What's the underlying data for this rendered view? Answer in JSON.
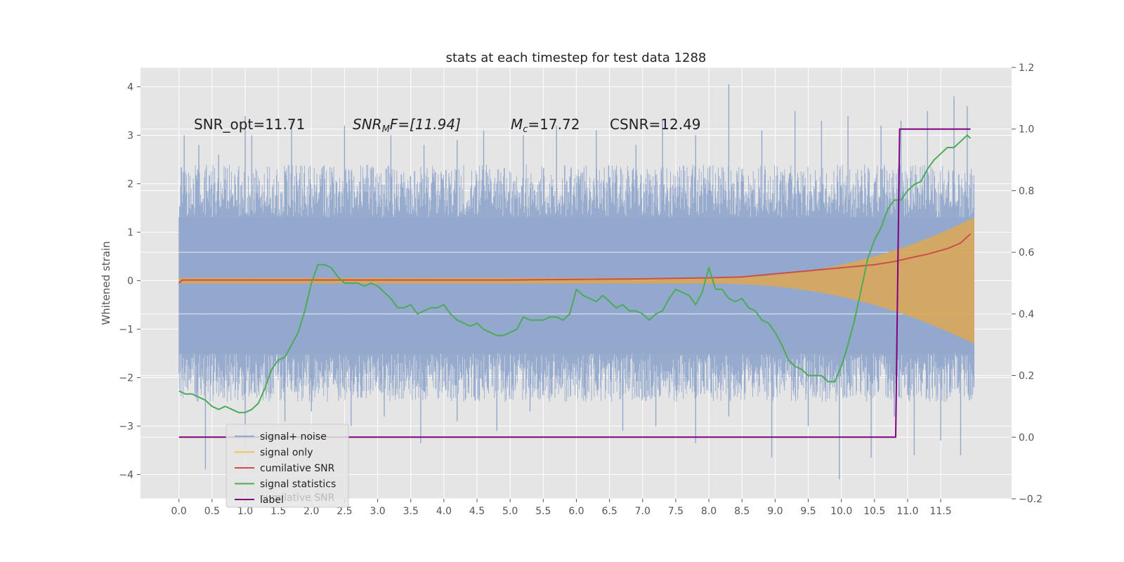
{
  "chart_data": {
    "type": "line",
    "title": "stats at each timestep for test data 1288",
    "ylabel": "Whitened strain",
    "xlim": [
      -0.58,
      12.57
    ],
    "ylim": [
      -4.5,
      4.4
    ],
    "y2lim": [
      -0.2,
      1.2
    ],
    "grid": true,
    "x_ticks": [
      "0.0",
      "0.5",
      "1.0",
      "1.5",
      "2.0",
      "2.5",
      "3.0",
      "3.5",
      "4.0",
      "4.5",
      "5.0",
      "5.5",
      "6.0",
      "6.5",
      "7.0",
      "7.5",
      "8.0",
      "8.5",
      "9.0",
      "9.5",
      "10.0",
      "10.5",
      "11.0",
      "11.5"
    ],
    "y_ticks": [
      "4",
      "3",
      "2",
      "1",
      "0",
      "−1",
      "−2",
      "−3",
      "−4"
    ],
    "y2_ticks": [
      "1.2",
      "1.0",
      "0.8",
      "0.6",
      "0.4",
      "0.2",
      "0.0",
      "−0.2"
    ],
    "annotations": {
      "snr_opt": "SNR_opt=11.71",
      "snr_mf_main": "SNR",
      "snr_mf_sub": "M",
      "snr_mf_rest": "F=[11.94]",
      "mc_main": "M",
      "mc_sub": "c",
      "mc_rest": "=17.72",
      "csnr": "CSNR=12.49"
    },
    "legend": {
      "placement": "lower-left",
      "ghost_text": "cumilative SNR",
      "entries": [
        {
          "name": "signal+ noise",
          "color": "#92a8cc"
        },
        {
          "name": "signal only",
          "color": "#f1c453"
        },
        {
          "name": "cumilative SNR",
          "color": "#cc4f4a"
        },
        {
          "name": "signal statistics",
          "color": "#4caa58"
        },
        {
          "name": "label",
          "color": "#800080"
        }
      ]
    },
    "noise_envelope": {
      "x": [
        0.0,
        12.0
      ],
      "upper": 1.3,
      "lower": -1.5,
      "peaks_upper": [
        [
          0.05,
          1.2
        ],
        [
          0.08,
          3.0
        ],
        [
          0.3,
          2.8
        ],
        [
          0.6,
          2.6
        ],
        [
          1.0,
          3.4
        ],
        [
          1.1,
          3.0
        ],
        [
          1.7,
          3.3
        ],
        [
          2.2,
          2.1
        ],
        [
          2.5,
          3.2
        ],
        [
          3.2,
          3.0
        ],
        [
          3.7,
          2.8
        ],
        [
          4.2,
          2.9
        ],
        [
          4.6,
          3.1
        ],
        [
          5.2,
          3.0
        ],
        [
          5.7,
          3.2
        ],
        [
          6.0,
          0.85
        ],
        [
          6.3,
          3.1
        ],
        [
          6.9,
          2.8
        ],
        [
          7.3,
          3.3
        ],
        [
          7.8,
          3.0
        ],
        [
          8.3,
          4.05
        ],
        [
          8.8,
          3.1
        ],
        [
          9.3,
          3.5
        ],
        [
          9.7,
          3.3
        ],
        [
          10.1,
          3.4
        ],
        [
          10.6,
          3.2
        ],
        [
          10.9,
          3.3
        ],
        [
          11.3,
          3.5
        ],
        [
          11.7,
          3.8
        ],
        [
          11.9,
          3.6
        ],
        [
          12.0,
          2.0
        ]
      ],
      "peaks_lower": [
        [
          0.05,
          -1.8
        ],
        [
          0.4,
          -3.9
        ],
        [
          1.0,
          -3.5
        ],
        [
          1.6,
          -2.9
        ],
        [
          2.0,
          -2.7
        ],
        [
          2.6,
          -3.0
        ],
        [
          3.1,
          -2.8
        ],
        [
          3.65,
          -3.35
        ],
        [
          4.2,
          -2.9
        ],
        [
          4.8,
          -3.1
        ],
        [
          5.3,
          -2.7
        ],
        [
          6.0,
          -1.1
        ],
        [
          6.7,
          -3.1
        ],
        [
          7.2,
          -3.0
        ],
        [
          7.8,
          -3.35
        ],
        [
          8.3,
          -2.8
        ],
        [
          8.95,
          -3.65
        ],
        [
          9.5,
          -3.0
        ],
        [
          9.97,
          -4.1
        ],
        [
          10.45,
          -3.65
        ],
        [
          10.8,
          -2.8
        ],
        [
          11.1,
          -3.6
        ],
        [
          11.5,
          -3.3
        ],
        [
          11.8,
          -3.6
        ],
        [
          12.0,
          -2.2
        ]
      ]
    },
    "signal_only": {
      "x_start": 8.0,
      "x_end": 12.0,
      "amp_start": 0.06,
      "amp_end": 1.3,
      "color": "#daa659"
    },
    "series": [
      {
        "name": "cumilative SNR",
        "axis": "right",
        "color": "#cc4f4a",
        "x": [
          0.0,
          0.05,
          1.0,
          2.0,
          3.0,
          4.0,
          5.0,
          6.0,
          7.0,
          8.0,
          8.5,
          9.0,
          9.5,
          10.0,
          10.5,
          10.8,
          11.0,
          11.3,
          11.6,
          11.8,
          11.95
        ],
        "y": [
          0.5,
          0.51,
          0.51,
          0.51,
          0.51,
          0.51,
          0.51,
          0.512,
          0.514,
          0.517,
          0.52,
          0.53,
          0.54,
          0.55,
          0.56,
          0.57,
          0.58,
          0.594,
          0.612,
          0.63,
          0.66
        ]
      },
      {
        "name": "signal statistics",
        "axis": "right",
        "color": "#4caa58",
        "x": [
          0.0,
          0.1,
          0.2,
          0.3,
          0.4,
          0.5,
          0.6,
          0.7,
          0.8,
          0.9,
          1.0,
          1.1,
          1.2,
          1.3,
          1.4,
          1.5,
          1.6,
          1.7,
          1.8,
          1.9,
          2.0,
          2.1,
          2.2,
          2.3,
          2.4,
          2.5,
          2.6,
          2.7,
          2.8,
          2.9,
          3.0,
          3.1,
          3.2,
          3.3,
          3.4,
          3.5,
          3.6,
          3.7,
          3.8,
          3.9,
          4.0,
          4.1,
          4.2,
          4.3,
          4.4,
          4.5,
          4.6,
          4.7,
          4.8,
          4.9,
          5.0,
          5.1,
          5.2,
          5.3,
          5.4,
          5.5,
          5.6,
          5.7,
          5.8,
          5.9,
          6.0,
          6.1,
          6.2,
          6.3,
          6.4,
          6.5,
          6.6,
          6.7,
          6.8,
          6.9,
          7.0,
          7.1,
          7.2,
          7.3,
          7.4,
          7.5,
          7.6,
          7.7,
          7.8,
          7.9,
          8.0,
          8.1,
          8.2,
          8.3,
          8.4,
          8.5,
          8.6,
          8.7,
          8.8,
          8.9,
          9.0,
          9.1,
          9.2,
          9.3,
          9.4,
          9.5,
          9.6,
          9.7,
          9.8,
          9.9,
          10.0,
          10.1,
          10.2,
          10.3,
          10.4,
          10.5,
          10.6,
          10.7,
          10.8,
          10.9,
          11.0,
          11.1,
          11.2,
          11.3,
          11.4,
          11.5,
          11.6,
          11.7,
          11.8,
          11.9,
          11.95
        ],
        "y": [
          0.15,
          0.14,
          0.14,
          0.13,
          0.12,
          0.1,
          0.09,
          0.1,
          0.09,
          0.08,
          0.08,
          0.09,
          0.11,
          0.16,
          0.22,
          0.25,
          0.26,
          0.3,
          0.34,
          0.41,
          0.5,
          0.56,
          0.56,
          0.55,
          0.52,
          0.5,
          0.5,
          0.5,
          0.49,
          0.5,
          0.49,
          0.47,
          0.45,
          0.42,
          0.42,
          0.43,
          0.4,
          0.41,
          0.42,
          0.42,
          0.43,
          0.4,
          0.38,
          0.37,
          0.36,
          0.37,
          0.35,
          0.34,
          0.33,
          0.33,
          0.34,
          0.35,
          0.39,
          0.38,
          0.38,
          0.38,
          0.39,
          0.39,
          0.38,
          0.4,
          0.48,
          0.46,
          0.45,
          0.44,
          0.46,
          0.44,
          0.42,
          0.43,
          0.41,
          0.41,
          0.4,
          0.38,
          0.4,
          0.41,
          0.45,
          0.48,
          0.47,
          0.46,
          0.43,
          0.47,
          0.55,
          0.48,
          0.48,
          0.45,
          0.44,
          0.45,
          0.42,
          0.41,
          0.38,
          0.37,
          0.34,
          0.3,
          0.25,
          0.23,
          0.22,
          0.2,
          0.2,
          0.2,
          0.18,
          0.18,
          0.23,
          0.3,
          0.38,
          0.48,
          0.58,
          0.64,
          0.68,
          0.74,
          0.77,
          0.77,
          0.8,
          0.82,
          0.83,
          0.87,
          0.9,
          0.92,
          0.94,
          0.94,
          0.96,
          0.98,
          0.97
        ]
      },
      {
        "name": "label",
        "axis": "right",
        "color": "#800080",
        "x": [
          0.0,
          10.82,
          10.88,
          11.95
        ],
        "y": [
          0.0,
          0.0,
          1.0,
          1.0
        ]
      }
    ]
  }
}
